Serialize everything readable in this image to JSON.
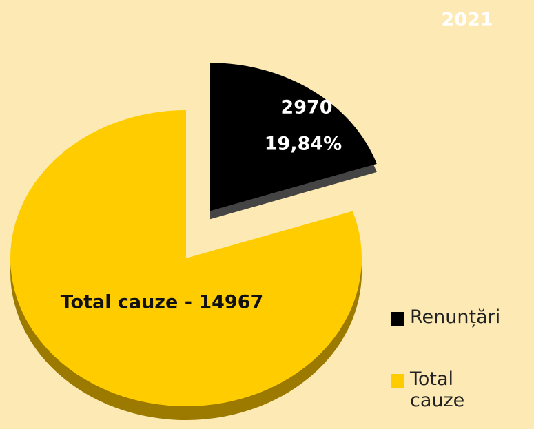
{
  "chart_data": {
    "type": "pie",
    "title": "2021",
    "categories": [
      "Renunțări",
      "Total cauze"
    ],
    "values": [
      2970,
      14967
    ],
    "value_labels": [
      "2970",
      "Total cauze - 14967"
    ],
    "percent_labels": [
      {
        "value": 19.84,
        "label": "19,84%"
      },
      null
    ],
    "colors": [
      "#000000",
      "#ffcc00"
    ],
    "legend": "right"
  }
}
